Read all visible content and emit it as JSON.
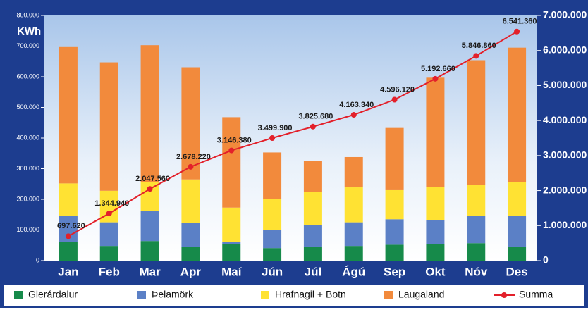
{
  "chart_data": {
    "type": "bar",
    "stacked": true,
    "y_label": "KWh",
    "categories": [
      "Jan",
      "Feb",
      "Mar",
      "Apr",
      "Maí",
      "Jún",
      "Júl",
      "Ágú",
      "Sep",
      "Okt",
      "Nóv",
      "Des"
    ],
    "series": [
      {
        "name": "Glerárdalur",
        "color": "#168a4a",
        "values": [
          62000,
          48000,
          64000,
          44000,
          53000,
          41000,
          46000,
          48000,
          52000,
          54000,
          57000,
          46000
        ]
      },
      {
        "name": "Þelamörk",
        "color": "#5b80c6",
        "values": [
          85000,
          77000,
          97000,
          80000,
          9000,
          58000,
          69000,
          77000,
          83000,
          79000,
          89000,
          101000
        ]
      },
      {
        "name": "Hrafnagil + Botn",
        "color": "#ffe233",
        "values": [
          105000,
          103000,
          96000,
          141000,
          111000,
          101000,
          108000,
          114000,
          95000,
          108000,
          102000,
          110000
        ]
      },
      {
        "name": "Laugaland",
        "color": "#f28a3c",
        "values": [
          445000,
          419000,
          446000,
          366000,
          295000,
          153000,
          103000,
          99000,
          203000,
          356000,
          406000,
          438000
        ]
      },
      {
        "name": "Summa",
        "type": "line",
        "axis": "y2",
        "color": "#e3202a",
        "values": [
          697620,
          1344940,
          2047560,
          2678220,
          3146380,
          3499900,
          3825680,
          4163340,
          4596120,
          5192660,
          5846860,
          6541360
        ],
        "value_labels": [
          "697.620",
          "1.344.940",
          "2.047.560",
          "2.678.220",
          "3.146.380",
          "3.499.900",
          "3.825.680",
          "4.163.340",
          "4.596.120",
          "5.192.660",
          "5.846.860",
          "6.541.360"
        ]
      }
    ],
    "ylim": [
      0,
      800000
    ],
    "yticks": [
      0,
      {
        "value": 100000,
        "label": "100.000"
      },
      {
        "value": 200000,
        "label": "200.000"
      },
      {
        "value": 300000,
        "label": "300.000"
      },
      {
        "value": 400000,
        "label": "400.000"
      },
      {
        "value": 500000,
        "label": "500.000"
      },
      {
        "value": 600000,
        "label": "600.000"
      },
      {
        "value": 700000,
        "label": "700.000"
      },
      {
        "value": 800000,
        "label": "800.000"
      }
    ],
    "y2lim": [
      0,
      7000000
    ],
    "y2ticks": [
      0,
      {
        "value": 1000000,
        "label": "1.000.000"
      },
      {
        "value": 2000000,
        "label": "2.000.000"
      },
      {
        "value": 3000000,
        "label": "3.000.000"
      },
      {
        "value": 4000000,
        "label": "4.000.000"
      },
      {
        "value": 5000000,
        "label": "5.000.000"
      },
      {
        "value": 6000000,
        "label": "6.000.000"
      },
      {
        "value": 7000000,
        "label": "7.000.000"
      }
    ]
  }
}
